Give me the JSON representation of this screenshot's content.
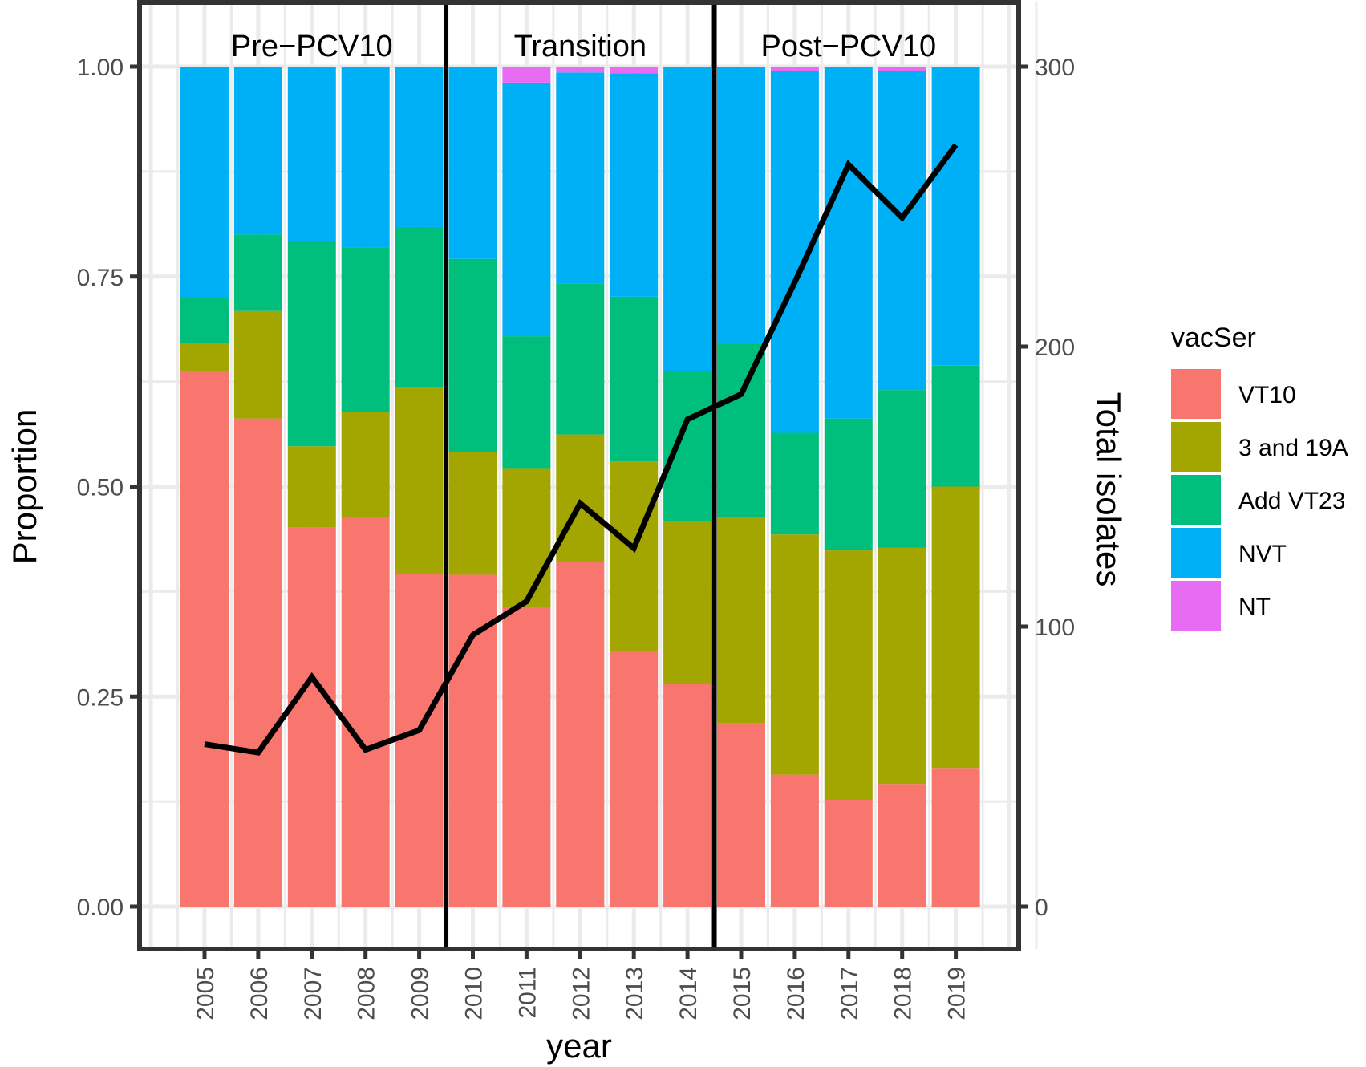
{
  "chart_data": {
    "type": "bar",
    "subtype": "stacked-proportion-with-line-overlay",
    "title": "",
    "xlabel": "year",
    "ylabel": "Proportion",
    "y2label": "Total isolates",
    "ylim": [
      0,
      1
    ],
    "y2lim": [
      0,
      300
    ],
    "yticks": [
      "0.00",
      "0.25",
      "0.50",
      "0.75",
      "1.00"
    ],
    "y2ticks": [
      "0",
      "100",
      "200",
      "300"
    ],
    "grid": true,
    "categories": [
      "2005",
      "2006",
      "2007",
      "2008",
      "2009",
      "2010",
      "2011",
      "2012",
      "2013",
      "2014",
      "2015",
      "2016",
      "2017",
      "2018",
      "2019"
    ],
    "periods": [
      {
        "label": "Pre−PCV10",
        "from": "2005",
        "to": "2009"
      },
      {
        "label": "Transition",
        "from": "2010",
        "to": "2014"
      },
      {
        "label": "Post−PCV10",
        "from": "2015",
        "to": "2019"
      }
    ],
    "period_dividers_after": [
      "2009",
      "2014"
    ],
    "legend": {
      "title": "vacSer",
      "position": "right"
    },
    "series": [
      {
        "name": "VT10",
        "color": "#F8766D",
        "values": [
          0.638,
          0.581,
          0.451,
          0.464,
          0.396,
          0.395,
          0.357,
          0.41,
          0.304,
          0.265,
          0.218,
          0.157,
          0.127,
          0.146,
          0.165
        ]
      },
      {
        "name": "3 and 19A",
        "color": "#A3A500",
        "values": [
          0.033,
          0.128,
          0.097,
          0.125,
          0.222,
          0.146,
          0.165,
          0.152,
          0.226,
          0.194,
          0.246,
          0.286,
          0.297,
          0.281,
          0.335
        ]
      },
      {
        "name": "Add VT23",
        "color": "#00BF7D",
        "values": [
          0.053,
          0.091,
          0.244,
          0.196,
          0.191,
          0.23,
          0.157,
          0.18,
          0.196,
          0.179,
          0.206,
          0.121,
          0.157,
          0.188,
          0.144
        ]
      },
      {
        "name": "NVT",
        "color": "#00B0F6",
        "values": [
          0.276,
          0.2,
          0.208,
          0.215,
          0.191,
          0.229,
          0.302,
          0.251,
          0.266,
          0.362,
          0.33,
          0.431,
          0.419,
          0.38,
          0.356
        ]
      },
      {
        "name": "NT",
        "color": "#E76BF3",
        "values": [
          0,
          0,
          0,
          0,
          0,
          0,
          0.019,
          0.007,
          0.008,
          0,
          0,
          0.005,
          0,
          0.005,
          0
        ]
      }
    ],
    "line": {
      "name": "Total isolates",
      "axis": "right",
      "color": "#000000",
      "values": [
        58,
        55,
        82,
        56,
        63,
        97,
        109,
        144,
        128,
        174,
        183,
        223,
        265,
        246,
        272
      ]
    }
  }
}
